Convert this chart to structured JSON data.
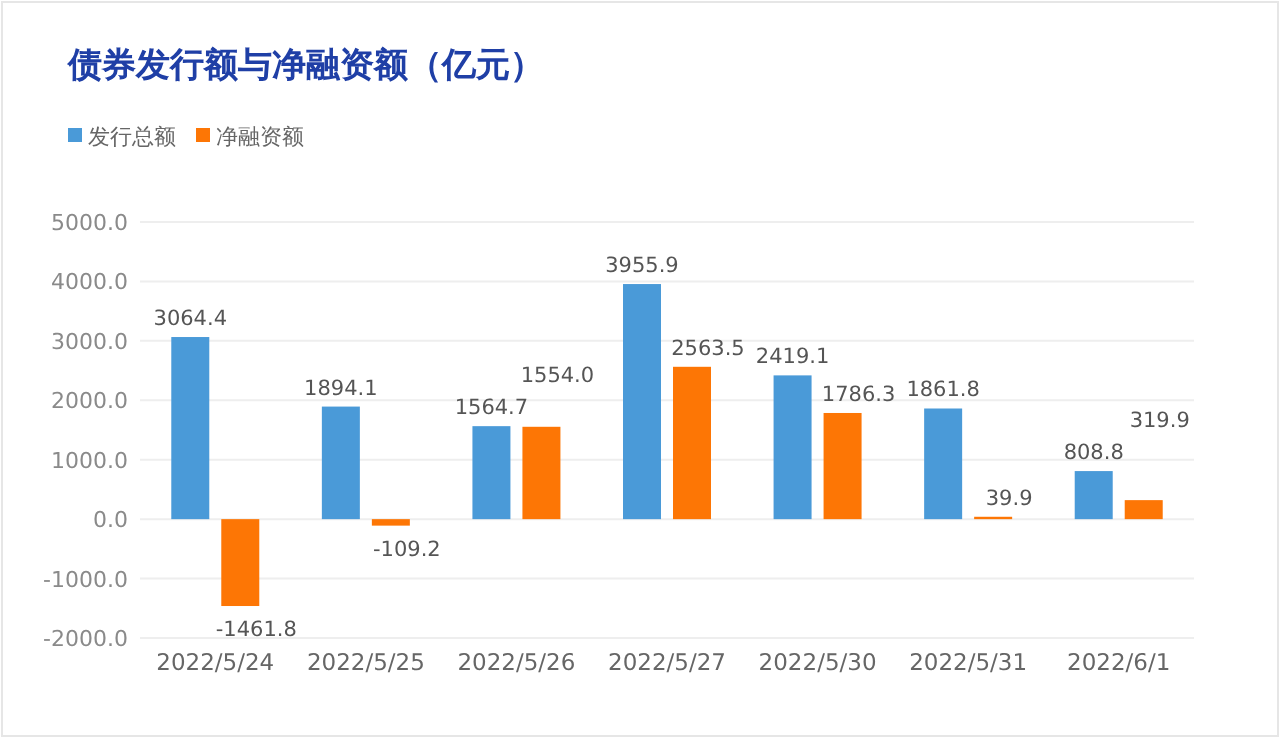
{
  "chart_data": {
    "type": "bar",
    "title": "债券发行额与净融资额（亿元）",
    "categories": [
      "2022/5/24",
      "2022/5/25",
      "2022/5/26",
      "2022/5/27",
      "2022/5/30",
      "2022/5/31",
      "2022/6/1"
    ],
    "series": [
      {
        "name": "发行总额",
        "color": "#4a9ad8",
        "values": [
          3064.4,
          1894.1,
          1564.7,
          3955.9,
          2419.1,
          1861.8,
          808.8
        ],
        "value_labels": [
          "3064.4",
          "1894.1",
          "1564.7",
          "3955.9",
          "2419.1",
          "1861.8",
          "808.8"
        ]
      },
      {
        "name": "净融资额",
        "color": "#fd7605",
        "values": [
          -1461.8,
          -109.2,
          1554.0,
          2563.5,
          1786.3,
          39.9,
          319.9
        ],
        "value_labels": [
          "-1461.8",
          "-109.2",
          "1554.0",
          "2563.5",
          "1786.3",
          "39.9",
          "319.9"
        ]
      }
    ],
    "ylim": [
      -2000,
      5000
    ],
    "yticks": [
      {
        "value": -2000,
        "label": "-2000.0"
      },
      {
        "value": -1000,
        "label": "-1000.0"
      },
      {
        "value": 0,
        "label": "0.0"
      },
      {
        "value": 1000,
        "label": "1000.0"
      },
      {
        "value": 2000,
        "label": "2000.0"
      },
      {
        "value": 3000,
        "label": "3000.0"
      },
      {
        "value": 4000,
        "label": "4000.0"
      },
      {
        "value": 5000,
        "label": "5000.0"
      }
    ],
    "grid": "y",
    "legend": "top left"
  }
}
